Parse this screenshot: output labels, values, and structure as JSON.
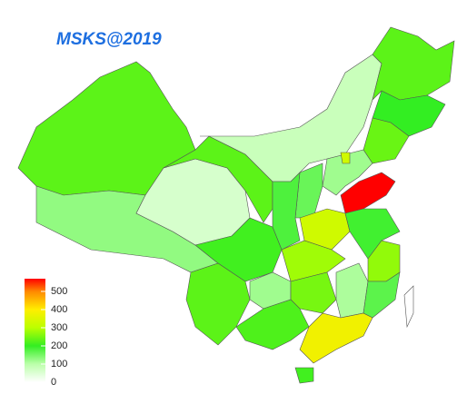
{
  "title": "MSKS@2019",
  "legend": {
    "ticks": [
      0,
      100,
      200,
      300,
      400,
      500
    ],
    "lim": [
      0,
      570
    ],
    "colors": [
      "#ffffff",
      "#bbffaa",
      "#33ee22",
      "#bbff00",
      "#ffee00",
      "#ff8800",
      "#ff0000"
    ]
  },
  "regions": [
    230,
    130,
    60,
    230,
    80,
    230,
    200,
    240,
    120,
    160,
    570,
    330,
    180,
    210,
    230,
    120,
    280,
    250,
    110,
    190,
    270,
    170,
    220,
    380,
    210,
    0,
    330
  ]
}
